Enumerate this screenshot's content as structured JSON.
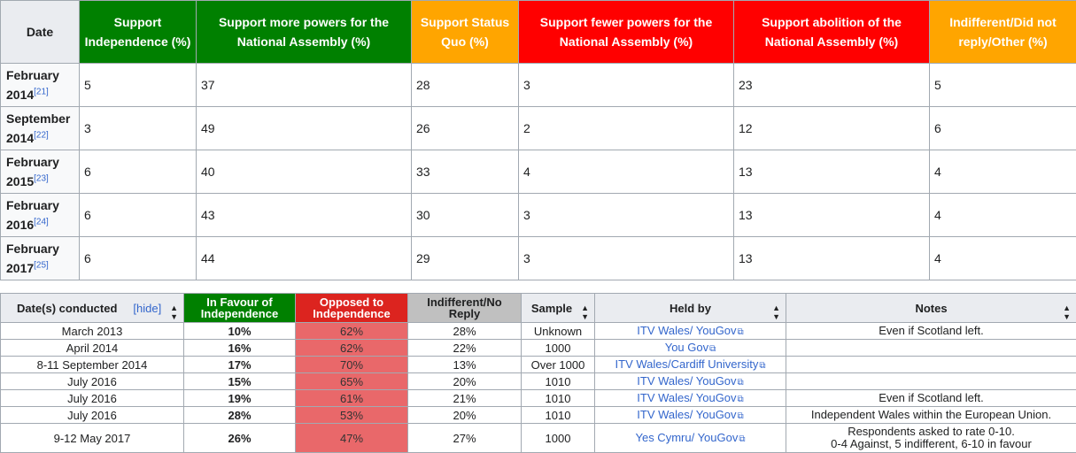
{
  "table1": {
    "headers": {
      "date": "Date",
      "independence": "Support Independence (%)",
      "more_powers": "Support more powers for the National Assembly (%)",
      "status_quo": "Support Status Quo (%)",
      "fewer_powers": "Support fewer powers for the National Assembly (%)",
      "abolition": "Support abolition of the National Assembly (%)",
      "other": "Indifferent/Did not reply/Other (%)"
    },
    "rows": [
      {
        "month": "February",
        "year": "2014",
        "ref": "[21]",
        "independence": "5",
        "more": "37",
        "status_quo": "28",
        "fewer": "3",
        "abolition": "23",
        "other": "5"
      },
      {
        "month": "September",
        "year": "2014",
        "ref": "[22]",
        "independence": "3",
        "more": "49",
        "status_quo": "26",
        "fewer": "2",
        "abolition": "12",
        "other": "6"
      },
      {
        "month": "February",
        "year": "2015",
        "ref": "[23]",
        "independence": "6",
        "more": "40",
        "status_quo": "33",
        "fewer": "4",
        "abolition": "13",
        "other": "4"
      },
      {
        "month": "February",
        "year": "2016",
        "ref": "[24]",
        "independence": "6",
        "more": "43",
        "status_quo": "30",
        "fewer": "3",
        "abolition": "13",
        "other": "4"
      },
      {
        "month": "February",
        "year": "2017",
        "ref": "[25]",
        "independence": "6",
        "more": "44",
        "status_quo": "29",
        "fewer": "3",
        "abolition": "13",
        "other": "4"
      }
    ]
  },
  "table2": {
    "headers": {
      "dates": "Date(s) conducted",
      "hide": "[hide]",
      "favour": "In Favour of Independence",
      "opposed": "Opposed to Independence",
      "indifferent": "Indifferent/No Reply",
      "sample": "Sample",
      "held_by": "Held by",
      "notes": "Notes"
    },
    "sort_icon": "sort-arrows-icon",
    "colors": {
      "favour": "#008000",
      "opposed": "#dc241f",
      "opposed_cell": "#e9686a",
      "indifferent": "#c0c0c0"
    },
    "rows": [
      {
        "date": "March 2013",
        "favour": "10%",
        "opposed": "62%",
        "indifferent": "28%",
        "sample": "Unknown",
        "held_by": "ITV Wales/ YouGov",
        "notes": "Even if Scotland left.",
        "notes2": ""
      },
      {
        "date": "April 2014",
        "favour": "16%",
        "opposed": "62%",
        "indifferent": "22%",
        "sample": "1000",
        "held_by": "You Gov",
        "notes": "",
        "notes2": ""
      },
      {
        "date": "8-11 September 2014",
        "favour": "17%",
        "opposed": "70%",
        "indifferent": "13%",
        "sample": "Over 1000",
        "held_by": "ITV Wales/Cardiff University",
        "notes": "",
        "notes2": ""
      },
      {
        "date": "July 2016",
        "favour": "15%",
        "opposed": "65%",
        "indifferent": "20%",
        "sample": "1010",
        "held_by": "ITV Wales/ YouGov",
        "notes": "",
        "notes2": ""
      },
      {
        "date": "July 2016",
        "favour": "19%",
        "opposed": "61%",
        "indifferent": "21%",
        "sample": "1010",
        "held_by": "ITV Wales/ YouGov",
        "notes": "Even if Scotland left.",
        "notes2": ""
      },
      {
        "date": "July 2016",
        "favour": "28%",
        "opposed": "53%",
        "indifferent": "20%",
        "sample": "1010",
        "held_by": "ITV Wales/ YouGov",
        "notes": "Independent Wales within the European Union.",
        "notes2": ""
      },
      {
        "date": "9-12 May 2017",
        "favour": "26%",
        "opposed": "47%",
        "indifferent": "27%",
        "sample": "1000",
        "held_by": "Yes Cymru/ YouGov",
        "notes": "Respondents asked to rate 0-10.",
        "notes2": "0-4 Against, 5 indifferent, 6-10 in favour"
      }
    ]
  }
}
